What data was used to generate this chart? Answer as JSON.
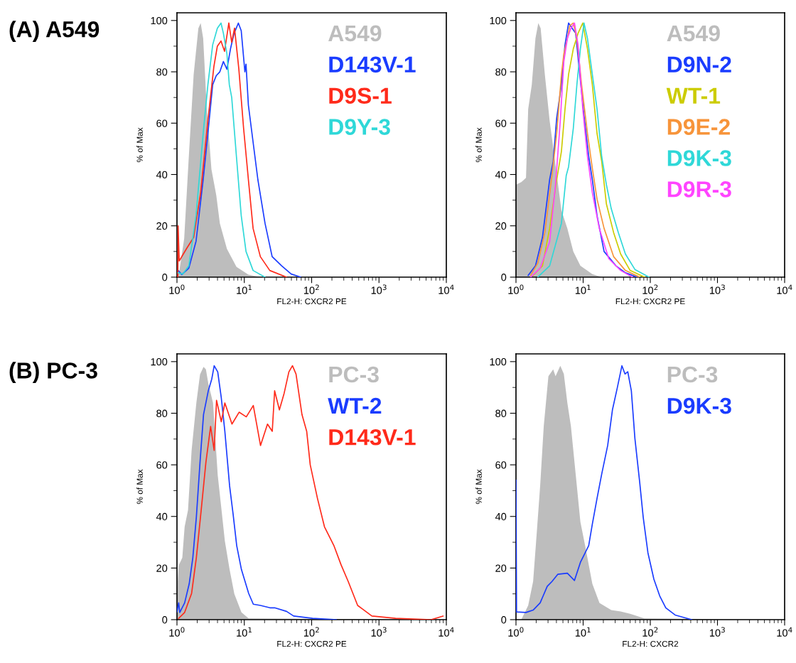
{
  "chart_data": [
    {
      "type": "line",
      "annotations": [
        "(A) A549"
      ],
      "xlabel": "FL2-H: CXCR2 PE",
      "ylabel": "% of Max",
      "log": "x",
      "legend": "top right",
      "xlim": [
        1,
        10000
      ],
      "xticks": [
        {
          "value": 1,
          "label": "10$^{0}$"
        },
        {
          "value": 10,
          "label": "10$^{1}$"
        },
        {
          "value": 100,
          "label": "10$^{2}$"
        },
        {
          "value": 1000,
          "label": "10$^{3}$"
        },
        {
          "value": 10000,
          "label": "10$^{4}$"
        }
      ],
      "ylim": [
        0,
        103
      ],
      "yticks": [
        0,
        20,
        40,
        60,
        80,
        100
      ],
      "series": [
        {
          "name": "A549",
          "type": "area",
          "color": "#bdbdbd",
          "x": [
            1.0,
            1.08,
            1.28,
            1.5,
            1.77,
            2.08,
            2.25,
            2.45,
            2.77,
            3.25,
            3.83,
            4.33,
            5.52,
            7.64,
            11.5,
            17.4,
            10000
          ],
          "values": [
            0,
            2,
            15,
            47,
            79,
            97,
            99,
            93,
            66,
            42,
            32,
            21,
            11,
            4,
            1,
            0,
            0
          ]
        },
        {
          "name": "D143V-1",
          "color": "#1a3cff",
          "x": [
            1.04,
            1.18,
            1.5,
            1.92,
            2.45,
            2.88,
            3.39,
            3.83,
            4.33,
            4.89,
            5.52,
            6.24,
            7.05,
            8.16,
            9.0,
            10.2,
            10.6,
            11.5,
            13.0,
            15.9,
            20.3,
            25.9,
            35.9,
            49.7,
            68.7
          ],
          "values": [
            2.6,
            1,
            3.5,
            14,
            38,
            56,
            75,
            78.5,
            80,
            84,
            81,
            89,
            95,
            99,
            96,
            80,
            83,
            67,
            56,
            38,
            21,
            8,
            4.4,
            1.2,
            0
          ]
        },
        {
          "name": "D9S-1",
          "color": "#ff2a1a",
          "x": [
            1.03,
            1.04,
            1.08,
            1.38,
            1.77,
            2.25,
            2.88,
            3.53,
            3.98,
            4.51,
            5.09,
            5.89,
            6.5,
            7.16,
            8.3,
            9.76,
            11.5,
            13.5,
            17.3,
            23.9,
            42.2
          ],
          "values": [
            0,
            20,
            6.3,
            11,
            15.5,
            33,
            61,
            82,
            90,
            92,
            88,
            99,
            91.5,
            97,
            81,
            58,
            38,
            19,
            8,
            2.6,
            0
          ]
        },
        {
          "name": "D9Y-3",
          "color": "#2fd8d8",
          "x": [
            1.04,
            1.22,
            1.5,
            1.92,
            2.45,
            2.88,
            3.39,
            3.98,
            4.51,
            4.89,
            5.52,
            5.99,
            6.5,
            7.64,
            9.0,
            10.6,
            13.5,
            20.3
          ],
          "values": [
            1.7,
            1.2,
            4.4,
            24,
            56,
            75,
            90.5,
            97,
            99,
            95,
            87,
            75,
            70,
            47,
            24,
            10,
            2.6,
            0
          ]
        }
      ]
    },
    {
      "type": "line",
      "xlabel": "FL2-H: CXCR2 PE",
      "ylabel": "% of Max",
      "log": "x",
      "legend": "top right",
      "xlim": [
        1,
        10000
      ],
      "xticks": [
        {
          "value": 1,
          "label": "10$^{0}$"
        },
        {
          "value": 10,
          "label": "10$^{1}$"
        },
        {
          "value": 100,
          "label": "10$^{2}$"
        },
        {
          "value": 1000,
          "label": "10$^{3}$"
        },
        {
          "value": 10000,
          "label": "10$^{4}$"
        }
      ],
      "ylim": [
        0,
        103
      ],
      "yticks": [
        0,
        20,
        40,
        60,
        80,
        100
      ],
      "series": [
        {
          "name": "A549",
          "type": "area",
          "color": "#bdbdbd",
          "x": [
            1.0,
            1.2,
            1.41,
            1.52,
            1.72,
            1.95,
            2.15,
            2.33,
            2.69,
            3.17,
            3.73,
            4.75,
            5.82,
            7.14,
            9.1,
            13.7,
            18.9,
            10000
          ],
          "values": [
            36,
            37,
            38.7,
            65.5,
            75,
            93,
            99,
            97,
            79,
            61,
            47,
            26,
            19,
            10,
            4.4,
            1.2,
            0,
            0
          ]
        },
        {
          "name": "D9N-2",
          "color": "#1a3cff",
          "x": [
            1.52,
            1.95,
            2.48,
            3.17,
            3.58,
            4.04,
            4.75,
            5.37,
            6.07,
            6.86,
            7.74,
            8.75,
            10.3,
            12.1,
            13.7,
            16.1,
            20.5,
            30.8,
            42.6,
            64
          ],
          "values": [
            0.7,
            4.4,
            15.5,
            38,
            45,
            62,
            75,
            90.5,
            99,
            97,
            95,
            81,
            63,
            47,
            38,
            24,
            10,
            4.4,
            1.7,
            0
          ]
        },
        {
          "name": "WT-1",
          "color": "#cccc00",
          "x": [
            1.8,
            2.48,
            3.17,
            4.04,
            4.75,
            5.37,
            6.07,
            7.14,
            8.4,
            9.88,
            11.6,
            13.7,
            16.1,
            18.9,
            22.2,
            28.4,
            36.2,
            50.1,
            81.6
          ],
          "values": [
            0.7,
            4.4,
            19,
            38,
            49,
            65.5,
            79,
            89,
            95,
            99,
            89,
            75,
            56,
            45,
            28.5,
            17.4,
            9,
            2.6,
            0
          ]
        },
        {
          "name": "D9E-2",
          "color": "#f7943a",
          "x": [
            1.65,
            2.11,
            2.69,
            3.43,
            4.04,
            4.75,
            5.16,
            5.82,
            6.32,
            7.14,
            8.07,
            9.48,
            11.6,
            13.7,
            16.1,
            20.5,
            28.4,
            42.6,
            69.3
          ],
          "values": [
            0.7,
            5.4,
            17.4,
            39.6,
            56,
            79,
            87,
            93,
            98,
            99,
            93,
            75,
            56,
            42.4,
            30.4,
            19,
            8,
            2.6,
            0
          ]
        },
        {
          "name": "D9K-3",
          "color": "#2fd8d8",
          "x": [
            2.11,
            3.17,
            4.75,
            5.6,
            6.07,
            7.14,
            8.07,
            9.1,
            10.3,
            11.6,
            13.7,
            16.1,
            18.9,
            22.2,
            26.2,
            33.4,
            42.6,
            59,
            96
          ],
          "values": [
            0,
            4.4,
            21,
            39.6,
            43,
            58,
            75,
            89,
            99,
            93,
            79,
            65.5,
            47,
            36,
            26.7,
            17.4,
            9,
            3,
            0
          ]
        },
        {
          "name": "D9R-3",
          "color": "#ff44ff",
          "x": [
            1.65,
            2.29,
            3.17,
            3.88,
            4.57,
            5.16,
            5.82,
            6.58,
            7.43,
            8.4,
            9.88,
            11.6,
            13.7,
            17.4,
            24.1,
            36.2,
            54.3
          ],
          "values": [
            0,
            3.5,
            13.7,
            36,
            61,
            84,
            93,
            97,
            99,
            90.5,
            65.5,
            47,
            33,
            19,
            7.2,
            2.6,
            0
          ]
        }
      ]
    },
    {
      "type": "line",
      "annotations": [
        "(B) PC-3"
      ],
      "xlabel": "FL2-H: CXCR2 PE",
      "ylabel": "% of Max",
      "log": "x",
      "legend": "top right",
      "xlim": [
        1,
        10000
      ],
      "xticks": [
        {
          "value": 1,
          "label": "10$^{0}$"
        },
        {
          "value": 10,
          "label": "10$^{1}$"
        },
        {
          "value": 100,
          "label": "10$^{2}$"
        },
        {
          "value": 1000,
          "label": "10$^{3}$"
        },
        {
          "value": 10000,
          "label": "10$^{4}$"
        }
      ],
      "ylim": [
        0,
        103
      ],
      "yticks": [
        0,
        20,
        40,
        60,
        80,
        100
      ],
      "series": [
        {
          "name": "PC-3",
          "type": "area",
          "color": "#bdbdbd",
          "x": [
            1.0,
            1.06,
            1.2,
            1.3,
            1.46,
            1.65,
            1.94,
            2.2,
            2.48,
            2.69,
            2.92,
            3.43,
            4.03,
            4.55,
            5.14,
            6.05,
            7.11,
            9.07,
            11.6,
            10000
          ],
          "values": [
            10,
            21,
            24,
            36,
            42.5,
            65.6,
            84,
            95,
            98,
            97,
            91.5,
            84,
            56,
            43.4,
            30.5,
            19.4,
            10,
            2.8,
            0.5,
            0
          ]
        },
        {
          "name": "WT-2",
          "color": "#1a3cff",
          "x": [
            1.0,
            1.06,
            1.1,
            1.3,
            1.52,
            1.72,
            1.94,
            2.2,
            2.48,
            2.92,
            3.29,
            3.57,
            4.03,
            4.55,
            5.14,
            6.05,
            6.83,
            7.71,
            9.07,
            11.6,
            13.6,
            17.4,
            24,
            28.2,
            42.4,
            54,
            103,
            232
          ],
          "values": [
            3,
            6.5,
            2.8,
            6.5,
            13.9,
            24,
            39.7,
            61,
            79.5,
            88.7,
            93.3,
            98.4,
            96,
            86,
            73,
            51.8,
            40.7,
            28.7,
            19.4,
            10.2,
            6,
            5.5,
            4.6,
            4.6,
            3.2,
            1.4,
            0.5,
            0
          ]
        },
        {
          "name": "D143V-1",
          "color": "#ff2a1a",
          "x": [
            1.06,
            1.3,
            1.65,
            1.94,
            2.29,
            2.69,
            3.16,
            3.57,
            3.87,
            4.55,
            5.14,
            6.56,
            8.37,
            10.7,
            13.6,
            17.4,
            22.1,
            26,
            28.2,
            33.2,
            39.1,
            45.9,
            51.9,
            58.6,
            71.8,
            84.4,
            95.3,
            122,
            155,
            214,
            273,
            349,
            482,
            784,
            1762,
            5950,
            8930
          ],
          "values": [
            0.5,
            2.8,
            10.2,
            24,
            42.5,
            61,
            74.9,
            65.6,
            85,
            76.7,
            84,
            75.8,
            80.4,
            78.6,
            83,
            67.5,
            75.8,
            73,
            88.7,
            81.3,
            87.8,
            96,
            98.4,
            95.2,
            79.5,
            73,
            60,
            47,
            36,
            28.7,
            21.3,
            14.8,
            5.5,
            1.4,
            0.5,
            0,
            1.4
          ]
        }
      ]
    },
    {
      "type": "line",
      "xlabel": "FL2-H: CXCR2",
      "ylabel": "% of Max",
      "log": "x",
      "legend": "top right",
      "xlim": [
        1,
        10000
      ],
      "xticks": [
        {
          "value": 1,
          "label": "10$^{0}$"
        },
        {
          "value": 10,
          "label": "10$^{1}$"
        },
        {
          "value": 100,
          "label": "10$^{2}$"
        },
        {
          "value": 1000,
          "label": "10$^{3}$"
        },
        {
          "value": 10000,
          "label": "10$^{4}$"
        }
      ],
      "ylim": [
        0,
        103
      ],
      "yticks": [
        0,
        20,
        40,
        60,
        80,
        100
      ],
      "series": [
        {
          "name": "PC-3",
          "type": "area",
          "color": "#bdbdbd",
          "x": [
            1.2,
            1.52,
            1.8,
            2.03,
            2.29,
            2.59,
            3.04,
            3.58,
            3.88,
            4.57,
            5.16,
            5.82,
            6.58,
            7.74,
            9.1,
            10.7,
            13.7,
            17.5,
            26.2,
            36.2,
            50.1,
            81.6,
            10000
          ],
          "values": [
            0,
            5.5,
            14.8,
            33,
            51.8,
            74.9,
            94.3,
            97,
            94.3,
            98.4,
            95.2,
            84,
            74.9,
            56.4,
            37.9,
            28.7,
            13.9,
            6.5,
            3.7,
            3.2,
            2.3,
            0.5,
            0
          ]
        },
        {
          "name": "D9K-3",
          "color": "#1a3cff",
          "x": [
            1.0,
            1.02,
            1.41,
            1.8,
            2.29,
            2.92,
            3.44,
            4.21,
            5.82,
            7.43,
            9.1,
            12.1,
            13.7,
            16.1,
            18.9,
            23.2,
            27.3,
            32.1,
            37.8,
            42,
            46.2,
            52.2,
            59,
            69.3,
            78.4,
            92.2,
            113,
            138,
            170,
            234,
            414
          ],
          "values": [
            54,
            3,
            2.8,
            3.7,
            6.5,
            12.9,
            14.8,
            17.6,
            18,
            15.2,
            22.2,
            28.7,
            37,
            47,
            56.4,
            67.5,
            81.3,
            89.6,
            98.4,
            95.2,
            96.1,
            88.7,
            70.2,
            53.6,
            39.7,
            25.9,
            15.7,
            9.2,
            4.6,
            1.8,
            0
          ]
        }
      ]
    }
  ]
}
